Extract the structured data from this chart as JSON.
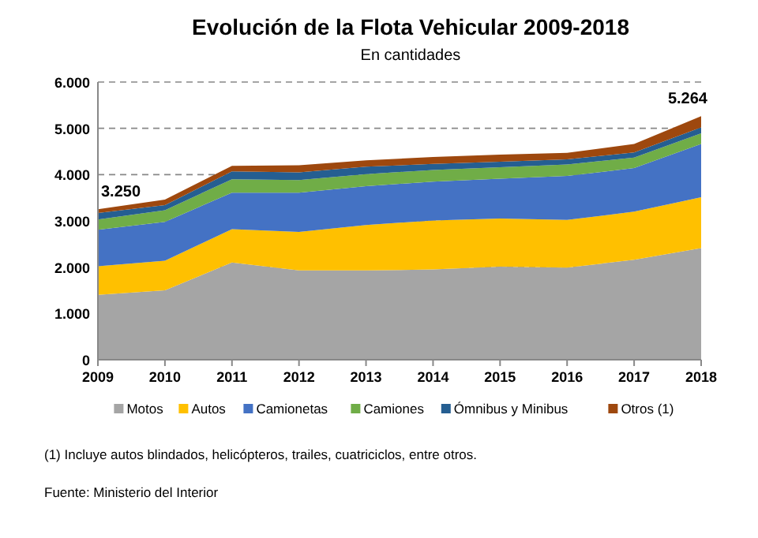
{
  "chart_data": {
    "type": "area",
    "stacked": true,
    "title": "Evolución de la Flota Vehicular 2009-2018",
    "subtitle": "En cantidades",
    "categories": [
      "2009",
      "2010",
      "2011",
      "2012",
      "2013",
      "2014",
      "2015",
      "2016",
      "2017",
      "2018"
    ],
    "series": [
      {
        "name": "Motos",
        "color": "#a5a5a5",
        "values": [
          1400,
          1500,
          2100,
          1930,
          1930,
          1950,
          2010,
          1990,
          2160,
          2410
        ]
      },
      {
        "name": "Autos",
        "color": "#ffc000",
        "values": [
          620,
          640,
          720,
          830,
          980,
          1060,
          1040,
          1030,
          1040,
          1100
        ]
      },
      {
        "name": "Camionetas",
        "color": "#4472c4",
        "values": [
          790,
          840,
          790,
          850,
          840,
          840,
          860,
          950,
          940,
          1150
        ]
      },
      {
        "name": "Camiones",
        "color": "#70ad47",
        "values": [
          220,
          250,
          290,
          270,
          260,
          250,
          250,
          250,
          230,
          230
        ]
      },
      {
        "name": "Ómnibus y Minibus",
        "color": "#255e91",
        "values": [
          140,
          110,
          170,
          170,
          160,
          130,
          120,
          110,
          110,
          130
        ]
      },
      {
        "name": "Otros (1)",
        "color": "#9e480e",
        "values": [
          80,
          120,
          120,
          150,
          140,
          150,
          150,
          140,
          180,
          244
        ]
      }
    ],
    "ylim": [
      0,
      6000
    ],
    "yticks": [
      0,
      {
        "value": 1000,
        "label": "1.000"
      },
      {
        "value": 2000,
        "label": "2.000"
      },
      {
        "value": 3000,
        "label": "3.000"
      },
      {
        "value": 4000,
        "label": "4.000"
      },
      {
        "value": 5000,
        "label": "5.000"
      },
      {
        "value": 6000,
        "label": "6.000"
      }
    ],
    "grid": "y",
    "legend": "bottom",
    "annotations": [
      {
        "text": "3.250",
        "x": "2009",
        "y": 3250
      },
      {
        "text": "5.264",
        "x": "2018",
        "y": 5264
      },
      "(1) Incluye autos blindados, helicópteros, trailes, cuatriciclos, entre otros.",
      "Fuente: Ministerio del Interior"
    ]
  }
}
